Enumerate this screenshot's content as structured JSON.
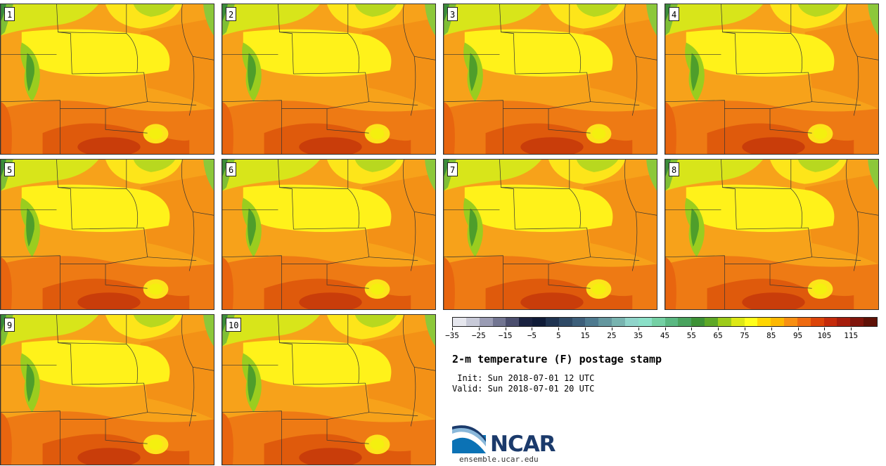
{
  "panels": [
    "1",
    "2",
    "3",
    "4",
    "5",
    "6",
    "7",
    "8",
    "9",
    "10"
  ],
  "colorbar": {
    "colors": [
      "#e6e7ee",
      "#c8cad8",
      "#9a9cb4",
      "#727591",
      "#4b4e6e",
      "#1a2240",
      "#0f1b37",
      "#1f3350",
      "#2f4a66",
      "#3d5f7a",
      "#4e7a8f",
      "#64979f",
      "#78b4b0",
      "#8fd4ca",
      "#8be0c8",
      "#74d0a4",
      "#5ab882",
      "#49a35e",
      "#3d9236",
      "#5ea827",
      "#9dcc1a",
      "#dde815",
      "#ffff1a",
      "#ffd600",
      "#fdb800",
      "#f88f12",
      "#ee6a10",
      "#dc4409",
      "#c52b0b",
      "#a61d0c",
      "#80150c",
      "#5f1107"
    ],
    "tick_labels": [
      "−35",
      "−25",
      "−15",
      "−5",
      "5",
      "15",
      "25",
      "35",
      "45",
      "55",
      "65",
      "75",
      "85",
      "95",
      "105",
      "115"
    ]
  },
  "title": "2-m temperature (F) postage stamp",
  "init": " Init: Sun 2018-07-01 12 UTC",
  "valid": "Valid: Sun 2018-07-01 20 UTC",
  "logo": {
    "text": "NCAR",
    "url": "ensemble.ucar.edu"
  }
}
